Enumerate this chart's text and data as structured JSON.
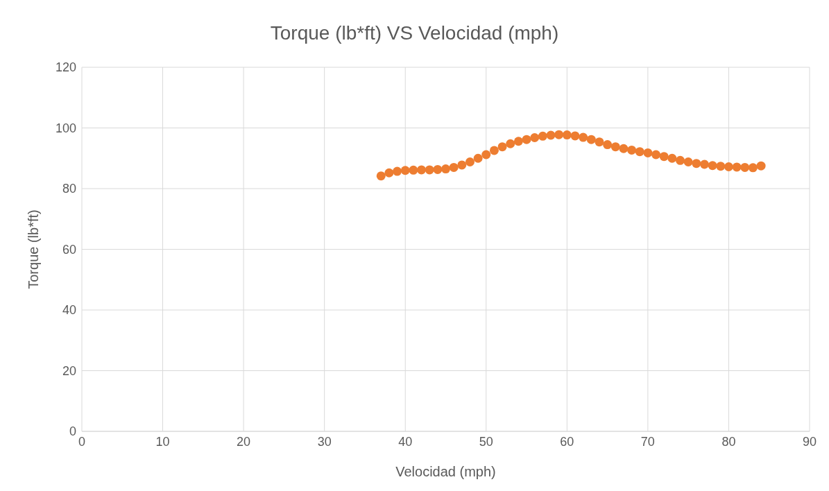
{
  "chart_data": {
    "type": "scatter",
    "title": "Torque (lb*ft) VS Velocidad (mph)",
    "xlabel": "Velocidad (mph)",
    "ylabel": "Torque (lb*ft)",
    "x": [
      37,
      38,
      39,
      40,
      41,
      42,
      43,
      44,
      45,
      46,
      47,
      48,
      49,
      50,
      51,
      52,
      53,
      54,
      55,
      56,
      57,
      58,
      59,
      60,
      61,
      62,
      63,
      64,
      65,
      66,
      67,
      68,
      69,
      70,
      71,
      72,
      73,
      74,
      75,
      76,
      77,
      78,
      79,
      80,
      81,
      82,
      83,
      84
    ],
    "series": [
      {
        "color": "#ed7d31",
        "values": [
          84.2,
          85.2,
          85.7,
          86,
          86.1,
          86.2,
          86.2,
          86.3,
          86.5,
          87,
          87.8,
          88.8,
          90,
          91.2,
          92.6,
          93.8,
          94.8,
          95.6,
          96.2,
          96.8,
          97.3,
          97.6,
          97.8,
          97.7,
          97.4,
          96.9,
          96.2,
          95.4,
          94.5,
          93.8,
          93.2,
          92.7,
          92.2,
          91.8,
          91.2,
          90.6,
          90,
          89.3,
          88.8,
          88.3,
          88,
          87.6,
          87.4,
          87.2,
          87.1,
          87,
          86.9,
          87.5
        ]
      }
    ],
    "xlim": [
      0,
      90
    ],
    "xticks": [
      0,
      10,
      20,
      30,
      40,
      50,
      60,
      70,
      80,
      90
    ],
    "ylim": [
      0,
      120
    ],
    "yticks": [
      0,
      20,
      40,
      60,
      80,
      100,
      120
    ],
    "grid": true,
    "marker": "circle"
  }
}
